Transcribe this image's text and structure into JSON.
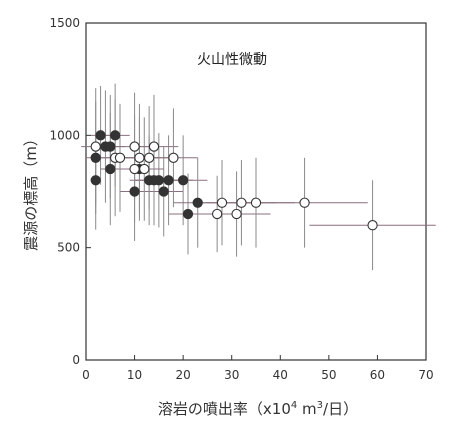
{
  "chart_data": {
    "type": "scatter",
    "annotation": "火山性微動",
    "xlabel": "溶岩の噴出率（x10",
    "xlabel_sup1": "4",
    "xlabel_mid": " m",
    "xlabel_sup2": "3",
    "xlabel_end": "/日）",
    "ylabel": "震源の標高（m）",
    "xlim": [
      0,
      70
    ],
    "ylim": [
      0,
      1500
    ],
    "x_ticks": [
      "0",
      "10",
      "20",
      "30",
      "40",
      "50",
      "60",
      "70"
    ],
    "y_ticks": [
      "0",
      "500",
      "1000",
      "1500"
    ],
    "grid": false,
    "series": [
      {
        "marker": "filled-circle",
        "color": "#333333",
        "points": [
          {
            "x": 2,
            "y": 800,
            "xerr": 0,
            "yerr": 220
          },
          {
            "x": 2,
            "y": 900,
            "xerr": 2,
            "yerr": 250
          },
          {
            "x": 3,
            "y": 1000,
            "xerr": 2,
            "yerr": 220
          },
          {
            "x": 4,
            "y": 950,
            "xerr": 2,
            "yerr": 250
          },
          {
            "x": 5,
            "y": 950,
            "xerr": 3,
            "yerr": 230
          },
          {
            "x": 5,
            "y": 850,
            "xerr": 2,
            "yerr": 250
          },
          {
            "x": 6,
            "y": 1000,
            "xerr": 3,
            "yerr": 230
          },
          {
            "x": 10,
            "y": 750,
            "xerr": 3,
            "yerr": 220
          },
          {
            "x": 11,
            "y": 850,
            "xerr": 2,
            "yerr": 230
          },
          {
            "x": 13,
            "y": 800,
            "xerr": 4,
            "yerr": 200
          },
          {
            "x": 14,
            "y": 800,
            "xerr": 4,
            "yerr": 200
          },
          {
            "x": 15,
            "y": 800,
            "xerr": 5,
            "yerr": 210
          },
          {
            "x": 16,
            "y": 750,
            "xerr": 4,
            "yerr": 200
          },
          {
            "x": 17,
            "y": 800,
            "xerr": 5,
            "yerr": 200
          },
          {
            "x": 20,
            "y": 800,
            "xerr": 5,
            "yerr": 200
          },
          {
            "x": 21,
            "y": 650,
            "xerr": 4,
            "yerr": 180
          },
          {
            "x": 23,
            "y": 700,
            "xerr": 5,
            "yerr": 200
          }
        ]
      },
      {
        "marker": "open-circle",
        "color": "#333333",
        "points": [
          {
            "x": 2,
            "y": 950,
            "xerr": 3,
            "yerr": 260
          },
          {
            "x": 6,
            "y": 900,
            "xerr": 3,
            "yerr": 260
          },
          {
            "x": 7,
            "y": 900,
            "xerr": 3,
            "yerr": 240
          },
          {
            "x": 10,
            "y": 950,
            "xerr": 4,
            "yerr": 240
          },
          {
            "x": 10,
            "y": 850,
            "xerr": 3,
            "yerr": 240
          },
          {
            "x": 11,
            "y": 900,
            "xerr": 4,
            "yerr": 240
          },
          {
            "x": 12,
            "y": 850,
            "xerr": 4,
            "yerr": 230
          },
          {
            "x": 13,
            "y": 900,
            "xerr": 5,
            "yerr": 230
          },
          {
            "x": 14,
            "y": 950,
            "xerr": 5,
            "yerr": 230
          },
          {
            "x": 18,
            "y": 900,
            "xerr": 5,
            "yerr": 220
          },
          {
            "x": 27,
            "y": 650,
            "xerr": 6,
            "yerr": 170
          },
          {
            "x": 28,
            "y": 700,
            "xerr": 6,
            "yerr": 190
          },
          {
            "x": 31,
            "y": 650,
            "xerr": 7,
            "yerr": 190
          },
          {
            "x": 32,
            "y": 700,
            "xerr": 7,
            "yerr": 190
          },
          {
            "x": 35,
            "y": 700,
            "xerr": 8,
            "yerr": 200
          },
          {
            "x": 45,
            "y": 700,
            "xerr": 13,
            "yerr": 200
          },
          {
            "x": 59,
            "y": 600,
            "xerr": 13,
            "yerr": 200
          }
        ]
      }
    ]
  }
}
